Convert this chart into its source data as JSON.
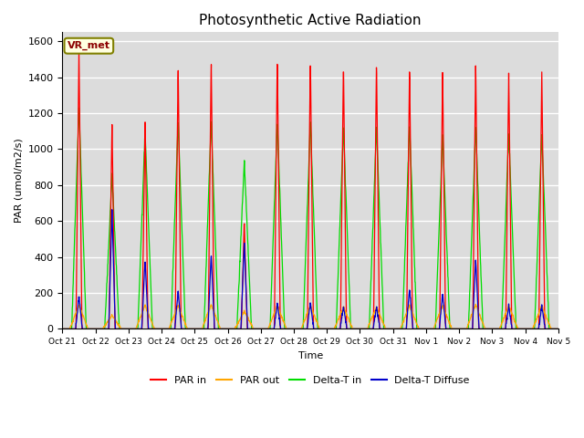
{
  "title": "Photosynthetic Active Radiation",
  "ylabel": "PAR (umol/m2/s)",
  "xlabel": "Time",
  "legend_label": "VR_met",
  "ylim": [
    0,
    1650
  ],
  "yticks": [
    0,
    200,
    400,
    600,
    800,
    1000,
    1200,
    1400,
    1600
  ],
  "xtick_labels": [
    "Oct 21",
    "Oct 22",
    "Oct 23",
    "Oct 24",
    "Oct 25",
    "Oct 26",
    "Oct 27",
    "Oct 28",
    "Oct 29",
    "Oct 30",
    "Oct 31",
    "Nov 1",
    "Nov 2",
    "Nov 3",
    "Nov 4",
    "Nov 5"
  ],
  "colors": {
    "PAR_in": "#ff0000",
    "PAR_out": "#ffa500",
    "DeltaT_in": "#00dd00",
    "DeltaT_Diffuse": "#0000cc"
  },
  "bg_color": "#dcdcdc",
  "fig_bg": "#ffffff",
  "legend_entries": [
    "PAR in",
    "PAR out",
    "Delta-T in",
    "Delta-T Diffuse"
  ]
}
